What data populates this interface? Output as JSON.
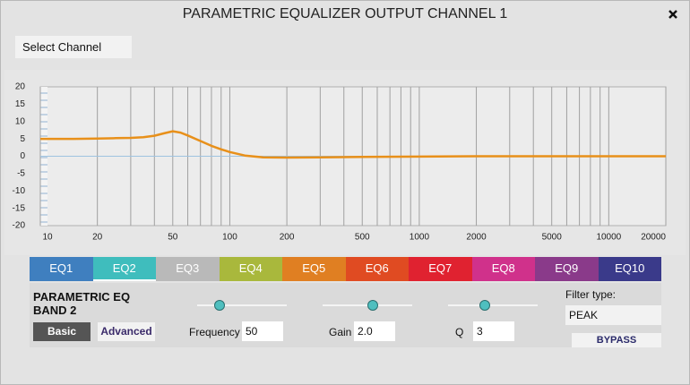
{
  "window": {
    "title": "PARAMETRIC EQUALIZER OUTPUT CHANNEL 1"
  },
  "select_channel": "Select Channel",
  "chart_data": {
    "type": "line",
    "x": [
      10,
      15,
      20,
      25,
      30,
      35,
      40,
      45,
      50,
      55,
      60,
      70,
      80,
      90,
      100,
      120,
      150,
      200,
      300,
      500,
      1000,
      2000,
      5000,
      10000,
      20000
    ],
    "series": [
      {
        "color": "#e8901a",
        "values": [
          5,
          5,
          5.1,
          5.2,
          5.3,
          5.5,
          5.9,
          6.6,
          7.2,
          6.8,
          6,
          4.4,
          3,
          2,
          1.2,
          0.2,
          -0.3,
          -0.4,
          -0.3,
          -0.2,
          -0.1,
          0,
          0,
          0,
          0
        ]
      }
    ],
    "xlim": [
      10,
      20000
    ],
    "ylim": [
      -20,
      20
    ],
    "log_x": true,
    "grid": true,
    "xticks": [
      10,
      20,
      50,
      100,
      200,
      500,
      1000,
      2000,
      5000,
      10000,
      20000
    ],
    "yticks": [
      -20,
      -15,
      -10,
      -5,
      0,
      5,
      10,
      15,
      20
    ],
    "x_grid": [
      10,
      20,
      30,
      40,
      50,
      60,
      70,
      80,
      90,
      100,
      200,
      300,
      400,
      500,
      600,
      700,
      800,
      900,
      1000,
      2000,
      3000,
      4000,
      5000,
      6000,
      7000,
      8000,
      9000,
      10000,
      20000
    ],
    "grid_color": "#a0a0a0",
    "zero_color": "#9fc3e0"
  },
  "tabs": [
    {
      "label": "EQ1",
      "color": "#3f7fbf"
    },
    {
      "label": "EQ2",
      "color": "#3fbdbd"
    },
    {
      "label": "EQ3",
      "color": "#b9b9b9"
    },
    {
      "label": "EQ4",
      "color": "#a9b83c"
    },
    {
      "label": "EQ5",
      "color": "#e07f22"
    },
    {
      "label": "EQ6",
      "color": "#e04b22"
    },
    {
      "label": "EQ7",
      "color": "#e02230"
    },
    {
      "label": "EQ8",
      "color": "#d0318b"
    },
    {
      "label": "EQ9",
      "color": "#8a3a8a"
    },
    {
      "label": "EQ10",
      "color": "#3a3a8a"
    }
  ],
  "selected_tab": 1,
  "band": {
    "title": "PARAMETRIC EQ BAND 2",
    "basic": "Basic",
    "advanced": "Advanced",
    "frequency": {
      "label": "Frequency",
      "value": "50"
    },
    "gain": {
      "label": "Gain",
      "value": "2.0"
    },
    "q": {
      "label": "Q",
      "value": "3"
    }
  },
  "filter": {
    "label": "Filter type:",
    "value": "PEAK",
    "bypass": "BYPASS"
  }
}
